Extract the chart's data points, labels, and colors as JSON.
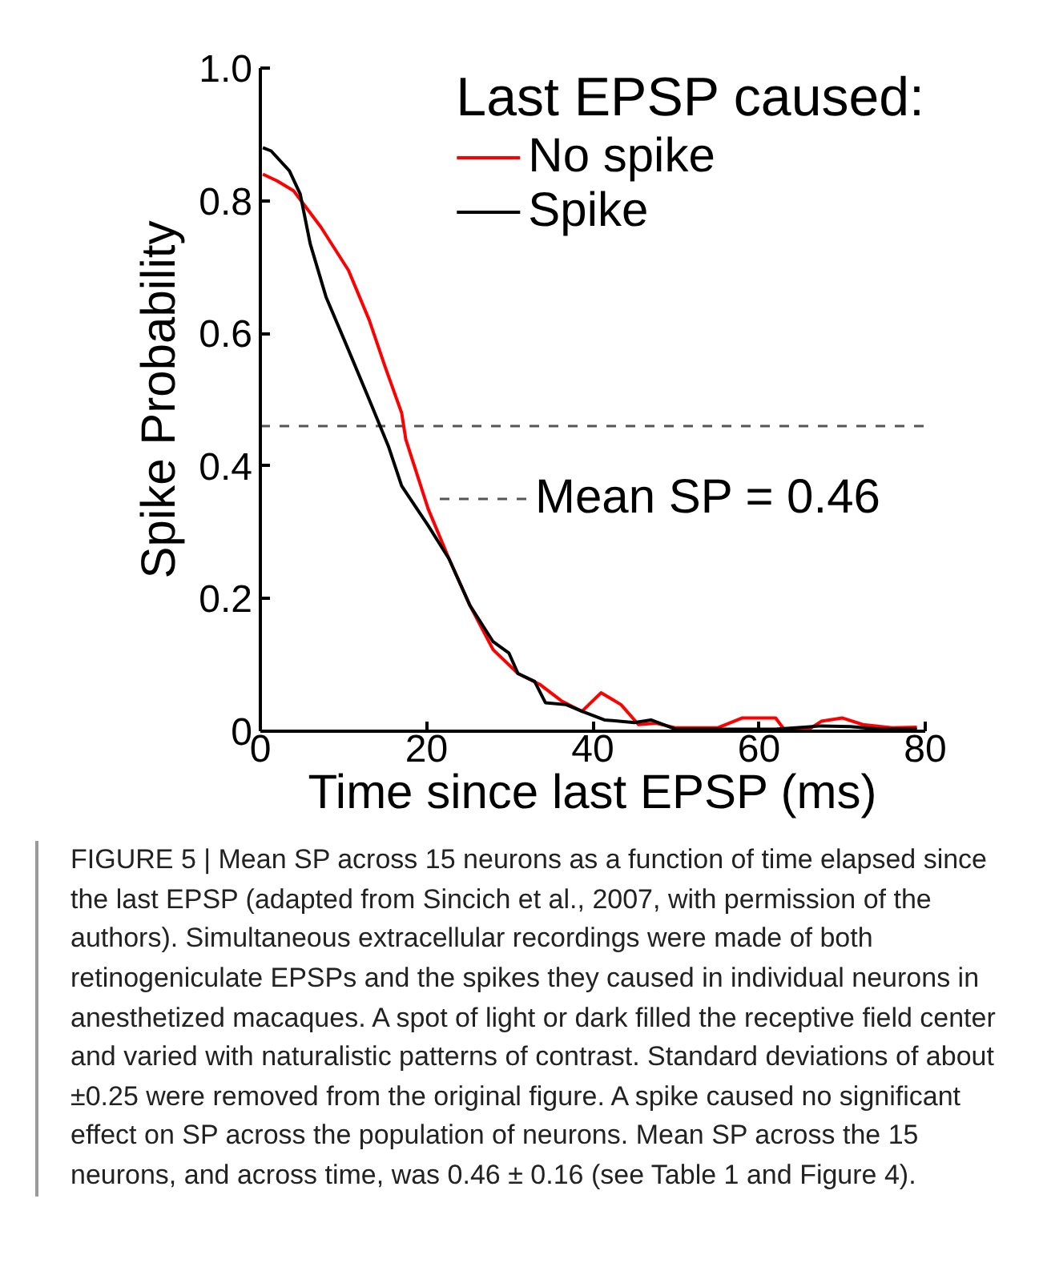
{
  "chart_data": {
    "type": "line",
    "xlabel": "Time since last EPSP (ms)",
    "ylabel": "Spike Probability",
    "legend_title": "Last EPSP caused:",
    "xlim": [
      0,
      80
    ],
    "ylim": [
      0,
      1
    ],
    "xticks": [
      0,
      20,
      40,
      60,
      80
    ],
    "yticks": [
      0,
      0.2,
      0.4,
      0.6,
      0.8,
      {
        "value": 1,
        "label": "1.0"
      }
    ],
    "grid": false,
    "legend": "top right",
    "marker": "none",
    "line_style": "solid",
    "ref_lines": [
      {
        "axis": "y",
        "value": 0.46,
        "label": "Mean SP = 0.46",
        "color": "#555555",
        "line_style": "dashed"
      }
    ],
    "series": [
      {
        "name": "No spike",
        "color": "#ff0000",
        "x": [
          0.3,
          2,
          4,
          7.3,
          10.6,
          13.1,
          15,
          17,
          17.5,
          20.2,
          22.7,
          25.2,
          28,
          31,
          33.7,
          36.2,
          38.7,
          41,
          43.4,
          45.5,
          47.6,
          50,
          55,
          58,
          62,
          63,
          66,
          67.5,
          70,
          72.5,
          76,
          79
        ],
        "values": [
          0.84,
          0.83,
          0.815,
          0.76,
          0.695,
          0.62,
          0.55,
          0.48,
          0.44,
          0.335,
          0.26,
          0.19,
          0.123,
          0.087,
          0.07,
          0.046,
          0.03,
          0.058,
          0.04,
          0.01,
          0.012,
          0.005,
          0.005,
          0.02,
          0.02,
          0.003,
          0.003,
          0.015,
          0.02,
          0.01,
          0.005,
          0.006
        ]
      },
      {
        "name": "Spike",
        "color": "#000000",
        "x": [
          0.3,
          1.3,
          3.5,
          4.8,
          6,
          7.9,
          10.6,
          13.1,
          15.4,
          17,
          20.2,
          22.7,
          25.2,
          28,
          29.9,
          31,
          33,
          34.3,
          36.8,
          38.7,
          41.4,
          45,
          47,
          50,
          62,
          67.5,
          71,
          74.6,
          79
        ],
        "values": [
          0.88,
          0.875,
          0.845,
          0.81,
          0.735,
          0.655,
          0.575,
          0.5,
          0.43,
          0.37,
          0.31,
          0.26,
          0.19,
          0.135,
          0.118,
          0.087,
          0.075,
          0.043,
          0.04,
          0.03,
          0.017,
          0.013,
          0.017,
          0.003,
          0.003,
          0.008,
          0.007,
          0.003,
          0.003
        ]
      }
    ],
    "annotations": [
      "FIGURE 5 | Mean SP across 15 neurons as a function of time elapsed since the last EPSP (adapted from Sincich et al., 2007, with permission of the authors). Simultaneous extracellular recordings were made of both retinogeniculate EPSPs and the spikes they caused in individual neurons in anesthetized macaques. A spot of light or dark filled the receptive field center and varied with naturalistic patterns of contrast. Standard deviations of about ±0.25 were removed from the original figure. A spike caused no significant effect on SP across the population of neurons. Mean SP across the 15 neurons, and across time, was 0.46 ± 0.16 (see Table 1 and Figure 4)."
    ]
  }
}
